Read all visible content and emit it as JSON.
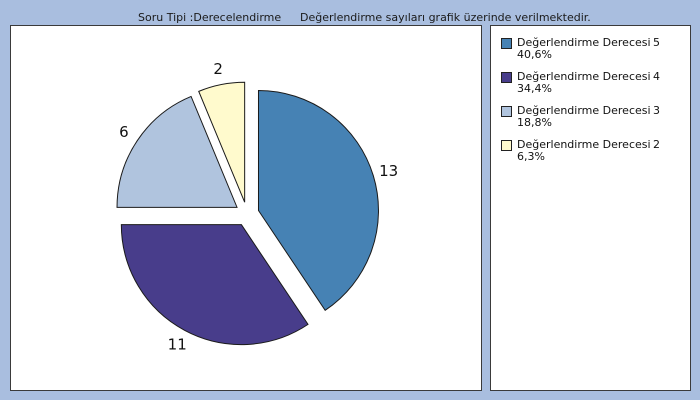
{
  "header": {
    "question_type": "Soru Tipi :Derecelendirme",
    "note": "Değerlendirme sayıları grafik üzerinde verilmektedir."
  },
  "chart_data": {
    "type": "pie",
    "title": "",
    "legend_position": "right",
    "slices": [
      {
        "name": "Değerlendirme Derecesi",
        "degree": "5",
        "value": 13,
        "percent": "40,6%",
        "color": "#4682b4"
      },
      {
        "name": "Değerlendirme Derecesi",
        "degree": "4",
        "value": 11,
        "percent": "34,4%",
        "color": "#483d8b"
      },
      {
        "name": "Değerlendirme Derecesi",
        "degree": "3",
        "value": 6,
        "percent": "18,8%",
        "color": "#b0c4de"
      },
      {
        "name": "Değerlendirme Derecesi",
        "degree": "2",
        "value": 2,
        "percent": "6,3%",
        "color": "#fffacd"
      }
    ]
  }
}
